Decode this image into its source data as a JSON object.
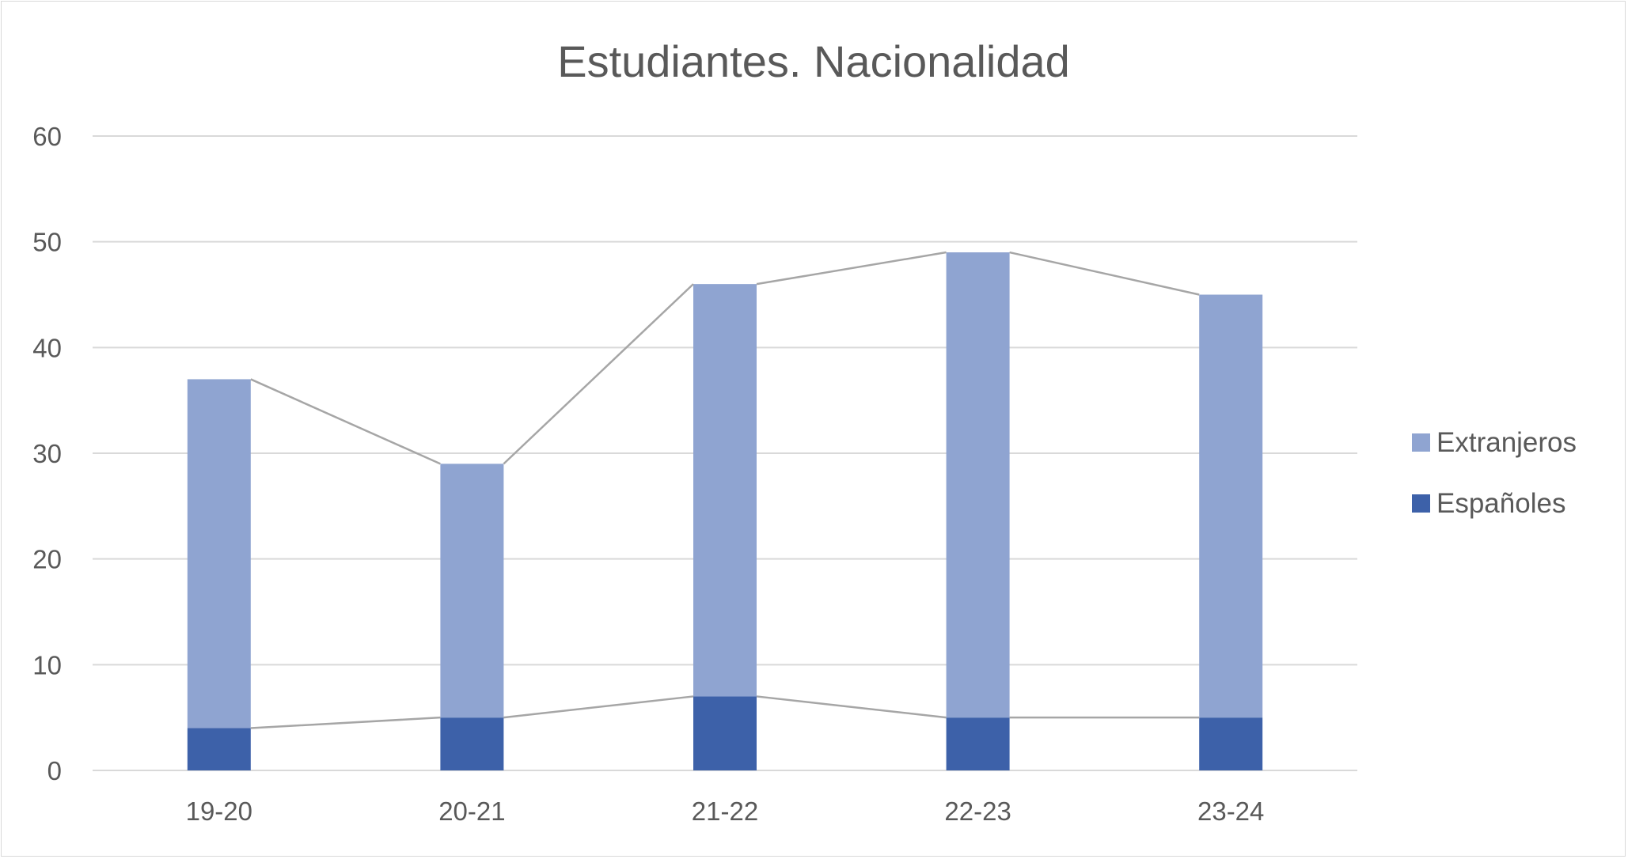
{
  "chart_data": {
    "type": "bar",
    "stacked": true,
    "title": "Estudiantes. Nacionalidad",
    "xlabel": "",
    "ylabel": "",
    "categories": [
      "19-20",
      "20-21",
      "21-22",
      "22-23",
      "23-24"
    ],
    "ylim": [
      0,
      60
    ],
    "yticks": [
      0,
      10,
      20,
      30,
      40,
      50,
      60
    ],
    "grid": true,
    "series_lines": true,
    "legend_position": "right",
    "series": [
      {
        "name": "Españoles",
        "values": [
          4,
          5,
          7,
          5,
          5
        ],
        "color": "#3d61a9"
      },
      {
        "name": "Extranjeros",
        "values": [
          33,
          24,
          39,
          44,
          40
        ],
        "color": "#8fa4d1"
      }
    ],
    "colors": {
      "gridline": "#d9d9d9",
      "series_line": "#a6a6a6",
      "text": "#595959"
    }
  }
}
